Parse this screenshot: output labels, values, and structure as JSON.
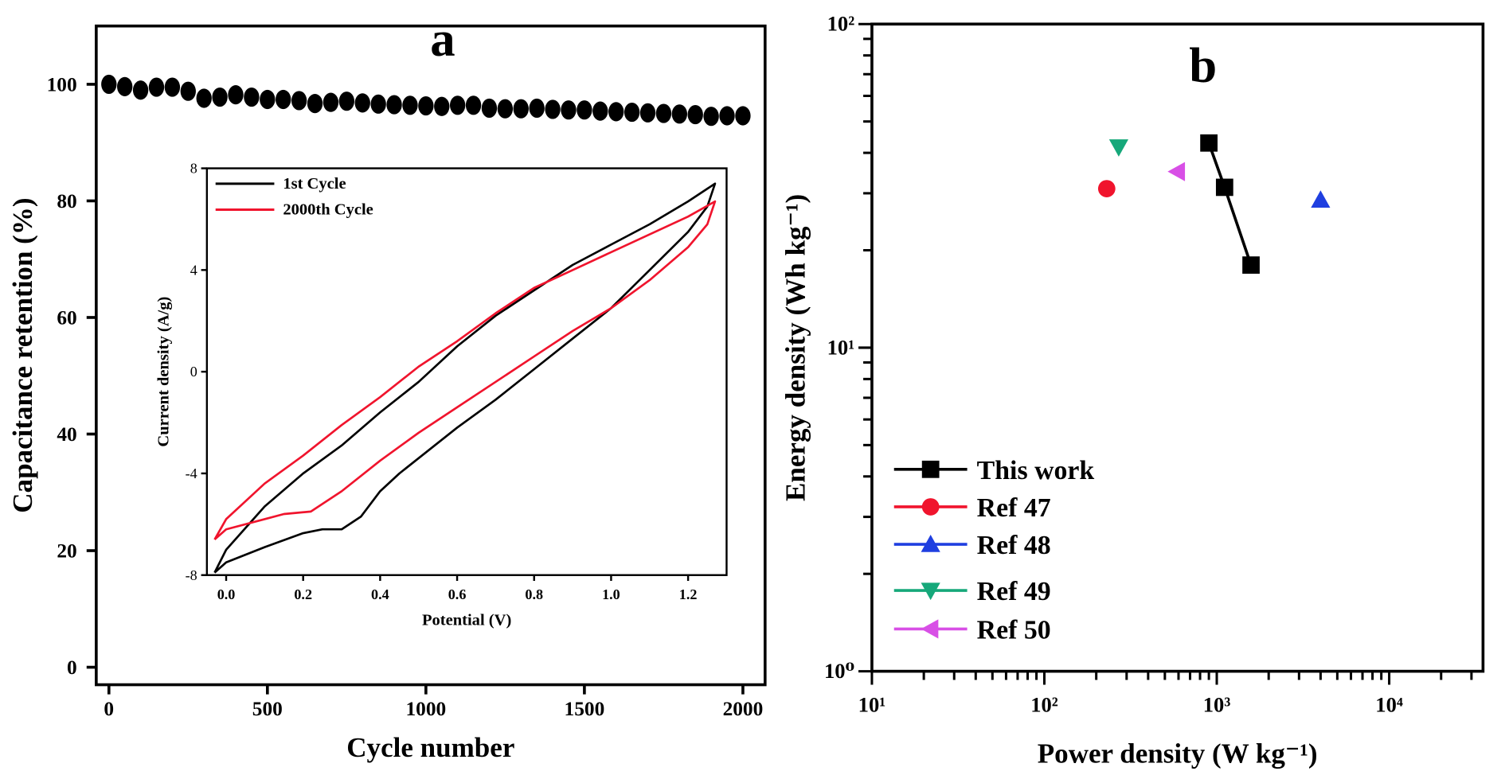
{
  "chart_data": [
    {
      "panel_label": "a",
      "type": "scatter",
      "xlabel": "Cycle number",
      "ylabel": "Capacitance retention (%)",
      "xlim": [
        -40,
        2070
      ],
      "ylim": [
        -3,
        110
      ],
      "xticks": [
        0,
        500,
        1000,
        1500,
        2000
      ],
      "yticks": [
        0,
        20,
        40,
        60,
        80,
        100
      ],
      "grid": false,
      "marker_color": "#000000",
      "x": [
        0,
        50,
        100,
        150,
        200,
        250,
        300,
        350,
        400,
        450,
        500,
        550,
        600,
        650,
        700,
        750,
        800,
        850,
        900,
        950,
        1000,
        1050,
        1100,
        1150,
        1200,
        1250,
        1300,
        1350,
        1400,
        1450,
        1500,
        1550,
        1600,
        1650,
        1700,
        1750,
        1800,
        1850,
        1900,
        1950,
        2000
      ],
      "y": [
        100,
        99.6,
        99.0,
        99.5,
        99.5,
        98.8,
        97.6,
        97.8,
        98.2,
        97.8,
        97.4,
        97.4,
        97.2,
        96.7,
        96.9,
        97.1,
        96.8,
        96.6,
        96.5,
        96.4,
        96.3,
        96.2,
        96.4,
        96.4,
        95.9,
        95.8,
        95.8,
        95.9,
        95.7,
        95.6,
        95.6,
        95.4,
        95.3,
        95.2,
        95.1,
        95.0,
        94.9,
        94.8,
        94.5,
        94.6,
        94.6
      ],
      "inset": {
        "type": "line",
        "xlabel": "Potential (V)",
        "ylabel": "Current density (A/g)",
        "xlim": [
          -0.05,
          1.3
        ],
        "ylim": [
          -8,
          8
        ],
        "xticks": [
          "0.0",
          "0.2",
          "0.4",
          "0.6",
          "0.8",
          "1.0",
          "1.2"
        ],
        "yticks": [
          "8",
          "4",
          "0",
          "-4",
          "-8"
        ],
        "legend_position": "top-left",
        "series": [
          {
            "name": "1st Cycle",
            "color": "#000000",
            "points": [
              [
                -0.03,
                -7.9
              ],
              [
                0.0,
                -7.0
              ],
              [
                0.1,
                -5.3
              ],
              [
                0.2,
                -4.0
              ],
              [
                0.3,
                -2.9
              ],
              [
                0.4,
                -1.6
              ],
              [
                0.5,
                -0.4
              ],
              [
                0.6,
                1.0
              ],
              [
                0.7,
                2.2
              ],
              [
                0.8,
                3.2
              ],
              [
                0.9,
                4.2
              ],
              [
                1.0,
                5.0
              ],
              [
                1.1,
                5.8
              ],
              [
                1.2,
                6.7
              ],
              [
                1.27,
                7.4
              ],
              [
                1.25,
                6.5
              ],
              [
                1.2,
                5.5
              ],
              [
                1.1,
                4.0
              ],
              [
                1.0,
                2.5
              ],
              [
                0.9,
                1.3
              ],
              [
                0.8,
                0.1
              ],
              [
                0.7,
                -1.1
              ],
              [
                0.6,
                -2.2
              ],
              [
                0.5,
                -3.4
              ],
              [
                0.45,
                -4.0
              ],
              [
                0.4,
                -4.7
              ],
              [
                0.35,
                -5.7
              ],
              [
                0.3,
                -6.2
              ],
              [
                0.25,
                -6.2
              ],
              [
                0.2,
                -6.35
              ],
              [
                0.1,
                -6.9
              ],
              [
                0.0,
                -7.5
              ],
              [
                -0.03,
                -7.9
              ]
            ]
          },
          {
            "name": "2000th Cycle",
            "color": "#f0142d",
            "points": [
              [
                -0.03,
                -6.6
              ],
              [
                0.0,
                -5.8
              ],
              [
                0.1,
                -4.4
              ],
              [
                0.2,
                -3.3
              ],
              [
                0.3,
                -2.1
              ],
              [
                0.4,
                -1.0
              ],
              [
                0.5,
                0.2
              ],
              [
                0.6,
                1.2
              ],
              [
                0.7,
                2.3
              ],
              [
                0.8,
                3.3
              ],
              [
                0.9,
                4.0
              ],
              [
                1.0,
                4.7
              ],
              [
                1.1,
                5.4
              ],
              [
                1.2,
                6.1
              ],
              [
                1.27,
                6.7
              ],
              [
                1.25,
                5.8
              ],
              [
                1.2,
                4.9
              ],
              [
                1.1,
                3.6
              ],
              [
                1.0,
                2.5
              ],
              [
                0.9,
                1.6
              ],
              [
                0.8,
                0.6
              ],
              [
                0.7,
                -0.4
              ],
              [
                0.6,
                -1.4
              ],
              [
                0.5,
                -2.4
              ],
              [
                0.4,
                -3.5
              ],
              [
                0.3,
                -4.7
              ],
              [
                0.22,
                -5.5
              ],
              [
                0.15,
                -5.6
              ],
              [
                0.1,
                -5.8
              ],
              [
                0.0,
                -6.2
              ],
              [
                -0.03,
                -6.6
              ]
            ]
          }
        ]
      }
    },
    {
      "panel_label": "b",
      "type": "scatter",
      "xlabel": "Power density (W kg⁻¹)",
      "ylabel": "Energy density (Wh kg⁻¹)",
      "xscale": "log",
      "yscale": "log",
      "xlim": [
        10,
        35000
      ],
      "ylim": [
        1,
        100
      ],
      "xticks": [
        10,
        100,
        1000,
        10000
      ],
      "xtick_labels": [
        "10¹",
        "10²",
        "10³",
        "10⁴"
      ],
      "yticks": [
        1,
        10,
        100
      ],
      "ytick_labels": [
        "10⁰",
        "10¹",
        "10²"
      ],
      "grid": false,
      "legend_position": "bottom-left",
      "series": [
        {
          "name": "This work",
          "color": "#000000",
          "marker": "square",
          "line": true,
          "x": [
            900,
            1110,
            1580
          ],
          "y": [
            42.9,
            31.3,
            18.0
          ]
        },
        {
          "name": "Ref 47",
          "color": "#f0142d",
          "marker": "circle",
          "x": [
            230
          ],
          "y": [
            31.0
          ]
        },
        {
          "name": "Ref 48",
          "color": "#1f3fe0",
          "marker": "triangle-up",
          "x": [
            4000
          ],
          "y": [
            28.6
          ]
        },
        {
          "name": "Ref 49",
          "color": "#16a87a",
          "marker": "triangle-down",
          "x": [
            270
          ],
          "y": [
            41.7
          ]
        },
        {
          "name": "Ref 50",
          "color": "#d84fe6",
          "marker": "triangle-left",
          "x": [
            590
          ],
          "y": [
            35.0
          ]
        }
      ]
    }
  ]
}
